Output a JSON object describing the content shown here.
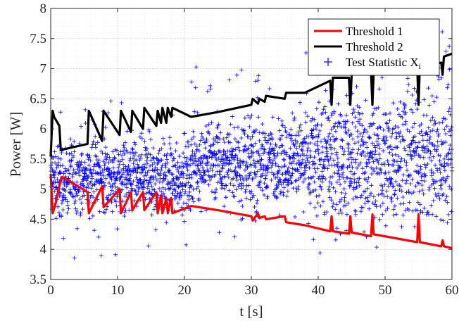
{
  "chart_data": {
    "type": "line",
    "xlabel": "t [s]",
    "ylabel": "Power [W]",
    "xlim": [
      0,
      60
    ],
    "ylim": [
      3.5,
      8
    ],
    "x_ticks": [
      "0",
      "10",
      "20",
      "30",
      "40",
      "50",
      "60"
    ],
    "y_ticks": [
      "3.5",
      "4",
      "4.5",
      "5",
      "5.5",
      "6",
      "6.5",
      "7",
      "7.5",
      "8"
    ],
    "grid": true,
    "minor_grid": true,
    "legend_position": "top-right",
    "legend": [
      {
        "label": "Threshold 1",
        "color": "#ff0000",
        "kind": "line"
      },
      {
        "label": "Threshold 2",
        "color": "#000000",
        "kind": "line"
      },
      {
        "label": "Test Statistic X",
        "subscript": "i",
        "color": "#0000ff",
        "kind": "marker"
      }
    ],
    "series": [
      {
        "key": "threshold1",
        "color": "#ff0000",
        "x": [
          0,
          0.3,
          0.7,
          1.6,
          1.8,
          5.5,
          5.7,
          7.7,
          7.9,
          10.3,
          10.5,
          12.0,
          12.2,
          13.8,
          14.0,
          15.8,
          16.0,
          16.5,
          16.7,
          17.3,
          17.5,
          18.0,
          18.2,
          21,
          25,
          30,
          30.2,
          31.0,
          31.2,
          32.0,
          32.2,
          35.0,
          35.2,
          38,
          41.8,
          42.0,
          42.2,
          44.6,
          44.8,
          45.0,
          47.9,
          48.1,
          48.3,
          54.8,
          55.0,
          55.2,
          58.4,
          58.6,
          58.8,
          60
        ],
        "y": [
          5.25,
          4.6,
          4.75,
          5.2,
          5.2,
          4.95,
          4.6,
          5.05,
          4.7,
          5.0,
          4.6,
          4.95,
          4.65,
          4.95,
          4.65,
          4.95,
          4.6,
          4.9,
          4.6,
          4.85,
          4.6,
          4.85,
          4.6,
          4.72,
          4.65,
          4.55,
          4.48,
          4.6,
          4.52,
          4.55,
          4.5,
          4.55,
          4.45,
          4.4,
          4.3,
          4.55,
          4.3,
          4.26,
          4.55,
          4.28,
          4.22,
          4.58,
          4.25,
          4.12,
          4.58,
          4.12,
          4.05,
          4.15,
          4.05,
          4.02
        ]
      },
      {
        "key": "threshold2",
        "color": "#000000",
        "x": [
          0,
          0.3,
          0.5,
          1.3,
          1.5,
          5.5,
          5.7,
          7.7,
          7.9,
          10.3,
          10.5,
          12.0,
          12.2,
          13.8,
          14.0,
          15.8,
          16.0,
          16.5,
          16.7,
          17.3,
          17.5,
          18.0,
          18.2,
          21,
          25,
          30,
          30.2,
          31.0,
          31.2,
          32.0,
          32.2,
          35.0,
          35.2,
          38,
          41.8,
          42.0,
          42.2,
          44.6,
          44.8,
          45.0,
          47.9,
          48.1,
          48.3,
          54.8,
          55.0,
          55.2,
          58.4,
          58.6,
          58.8,
          60
        ],
        "y": [
          5.55,
          6.3,
          6.2,
          6.05,
          5.65,
          5.75,
          6.3,
          5.8,
          6.3,
          5.9,
          6.3,
          5.95,
          6.3,
          6.0,
          6.35,
          6.05,
          6.3,
          6.1,
          6.35,
          6.1,
          6.35,
          6.2,
          6.35,
          6.2,
          6.28,
          6.4,
          6.5,
          6.42,
          6.5,
          6.45,
          6.55,
          6.5,
          6.6,
          6.6,
          6.8,
          6.4,
          6.85,
          6.85,
          6.4,
          6.9,
          6.95,
          6.4,
          6.95,
          7.05,
          6.4,
          7.05,
          7.1,
          6.9,
          7.2,
          7.25
        ]
      },
      {
        "key": "test_statistic",
        "color": "#0000ff",
        "marker": "+",
        "generated": true,
        "sample_step_s": 0.025,
        "segments": [
          {
            "x0": 0,
            "x1": 5,
            "y_lo": 4.3,
            "y_hi": 6.0,
            "y_min": 3.85,
            "y_max": 6.3
          },
          {
            "x0": 5,
            "x1": 12,
            "y_lo": 4.4,
            "y_hi": 6.0,
            "y_min": 3.85,
            "y_max": 6.5
          },
          {
            "x0": 12,
            "x1": 21,
            "y_lo": 4.3,
            "y_hi": 6.1,
            "y_min": 4.0,
            "y_max": 6.7
          },
          {
            "x0": 21,
            "x1": 30,
            "y_lo": 4.5,
            "y_hi": 6.4,
            "y_min": 4.2,
            "y_max": 7.1
          },
          {
            "x0": 30,
            "x1": 38,
            "y_lo": 4.5,
            "y_hi": 6.4,
            "y_min": 3.9,
            "y_max": 7.0
          },
          {
            "x0": 38,
            "x1": 48,
            "y_lo": 4.0,
            "y_hi": 7.0,
            "y_min": 3.9,
            "y_max": 7.5
          },
          {
            "x0": 48,
            "x1": 60,
            "y_lo": 4.0,
            "y_hi": 7.0,
            "y_min": 3.9,
            "y_max": 7.9
          }
        ]
      }
    ]
  }
}
